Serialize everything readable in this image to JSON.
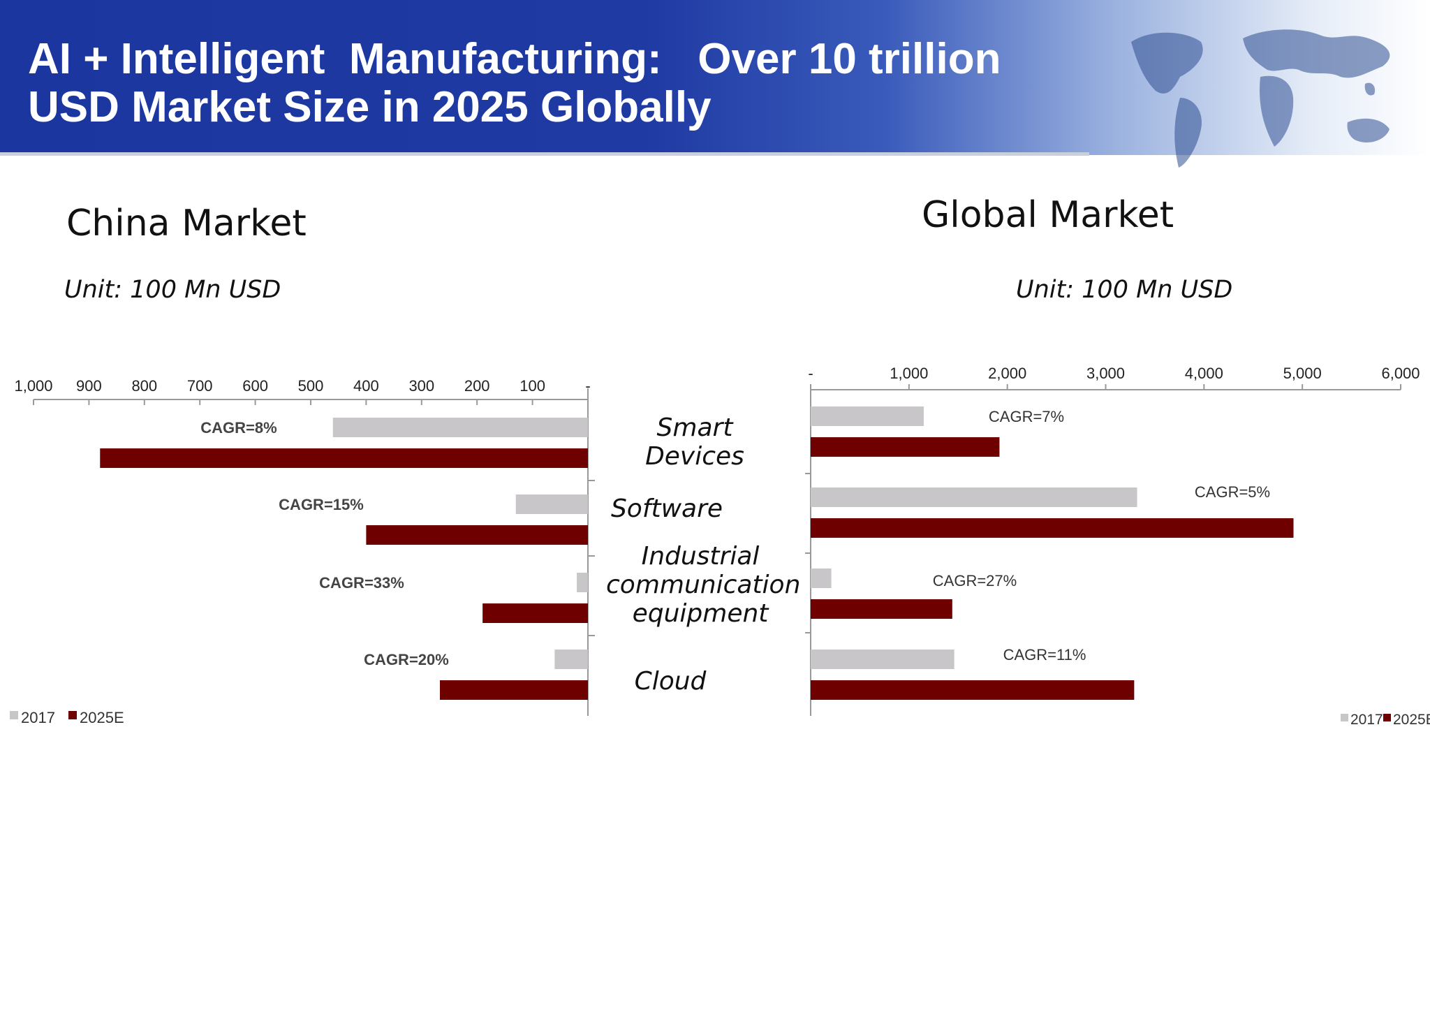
{
  "slide": {
    "title_line1": "AI + Intelligent  Manufacturing:   Over 10 trillion",
    "title_line2": "USD Market Size in 2025 Globally"
  },
  "colors": {
    "banner": "#1f3aa3",
    "bar_2017": "#c8c6c8",
    "bar_2025E": "#6e0000"
  },
  "categories": [
    "Smart Devices",
    "Software",
    "Industrial communication equipment",
    "Cloud"
  ],
  "category_lines": [
    [
      "Smart Devices"
    ],
    [
      "Software"
    ],
    [
      "Industrial",
      "communication",
      "equipment"
    ],
    [
      "Cloud"
    ]
  ],
  "chart_data": [
    {
      "type": "bar",
      "orientation": "horizontal",
      "direction": "right-to-left",
      "title": "China Market",
      "unit": "Unit: 100 Mn USD",
      "categories": [
        "Smart Devices",
        "Software",
        "Industrial communication equipment",
        "Cloud"
      ],
      "xlim": [
        0,
        1000
      ],
      "xticks": [
        1000,
        900,
        800,
        700,
        600,
        500,
        400,
        300,
        200,
        100,
        0
      ],
      "xtick_labels": [
        "1,000",
        "900",
        "800",
        "700",
        "600",
        "500",
        "400",
        "300",
        "200",
        "100",
        "-"
      ],
      "series": [
        {
          "name": "2017",
          "values": [
            460,
            130,
            20,
            60
          ]
        },
        {
          "name": "2025E",
          "values": [
            880,
            400,
            190,
            267
          ]
        }
      ],
      "annotations": [
        "CAGR=8%",
        "CAGR=15%",
        "CAGR=33%",
        "CAGR=20%"
      ],
      "legend": {
        "position": "bottom-left",
        "entries": [
          "2017",
          "2025E"
        ]
      }
    },
    {
      "type": "bar",
      "orientation": "horizontal",
      "title": "Global Market",
      "unit": "Unit: 100 Mn USD",
      "categories": [
        "Smart Devices",
        "Software",
        "Industrial communication equipment",
        "Cloud"
      ],
      "xlim": [
        0,
        6000
      ],
      "xticks": [
        0,
        1000,
        2000,
        3000,
        4000,
        5000,
        6000
      ],
      "xtick_labels": [
        "-",
        "1,000",
        "2,000",
        "3,000",
        "4,000",
        "5,000",
        "6,000"
      ],
      "series": [
        {
          "name": "2017",
          "values": [
            1150,
            3320,
            210,
            1460
          ]
        },
        {
          "name": "2025E",
          "values": [
            1920,
            4910,
            1440,
            3290
          ]
        }
      ],
      "annotations": [
        "CAGR=7%",
        "CAGR=5%",
        "CAGR=27%",
        "CAGR=11%"
      ],
      "legend": {
        "position": "bottom-right",
        "entries": [
          "2017",
          "2025E"
        ]
      }
    }
  ]
}
